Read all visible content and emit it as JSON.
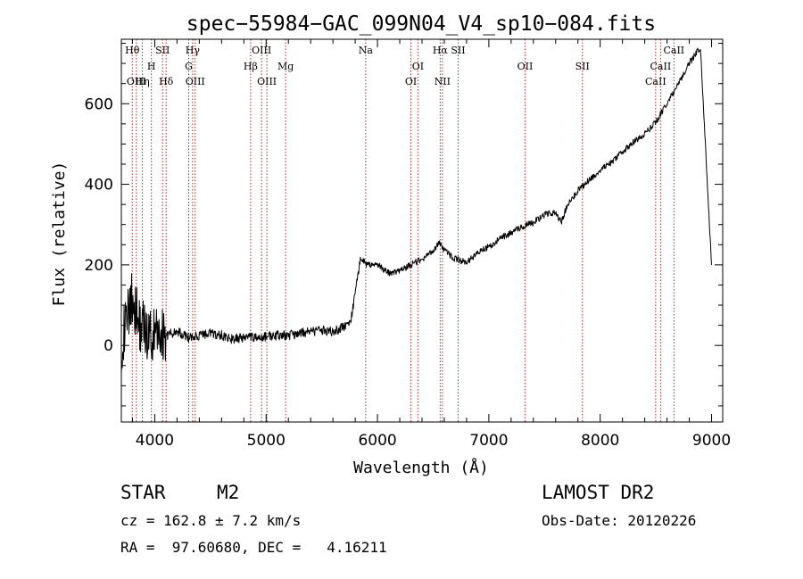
{
  "chart_data": {
    "type": "line",
    "title": "spec−55984−GAC_099N04_V4_sp10−084.fits",
    "xlabel": "Wavelength (Å)",
    "ylabel": "Flux (relative)",
    "xlim": [
      3700,
      9100
    ],
    "ylim": [
      -190,
      760
    ],
    "grid": false,
    "x_ticks": [
      4000,
      5000,
      6000,
      7000,
      8000,
      9000
    ],
    "x_tick_labels": [
      "4000",
      "5000",
      "6000",
      "7000",
      "8000",
      "9000"
    ],
    "y_ticks": [
      0,
      200,
      400,
      600
    ],
    "y_tick_labels": [
      "0",
      "200",
      "400",
      "600"
    ],
    "series": [
      {
        "x": [
          3700,
          3760,
          3800,
          3850,
          3900,
          3950,
          4000,
          4050,
          4100,
          4200,
          4300,
          4400,
          4500,
          4600,
          4700,
          4800,
          4900,
          5000,
          5100,
          5200,
          5300,
          5400,
          5500,
          5600,
          5700,
          5760,
          5800,
          5850,
          5900,
          6000,
          6100,
          6200,
          6300,
          6400,
          6500,
          6560,
          6600,
          6700,
          6800,
          6900,
          7000,
          7100,
          7200,
          7300,
          7400,
          7500,
          7600,
          7650,
          7700,
          7800,
          7900,
          8000,
          8100,
          8200,
          8300,
          8400,
          8500,
          8600,
          8700,
          8800,
          8900,
          9000
        ],
        "y": [
          0,
          80,
          120,
          60,
          40,
          30,
          20,
          30,
          25,
          35,
          20,
          25,
          30,
          25,
          15,
          20,
          18,
          22,
          25,
          25,
          30,
          35,
          38,
          35,
          45,
          60,
          130,
          220,
          200,
          200,
          180,
          185,
          200,
          215,
          235,
          255,
          235,
          215,
          205,
          230,
          245,
          265,
          280,
          295,
          305,
          325,
          330,
          305,
          345,
          385,
          410,
          435,
          455,
          480,
          505,
          525,
          555,
          600,
          650,
          700,
          740,
          200
        ]
      }
    ],
    "lines": [
      {
        "label": "Hθ",
        "x": 3798,
        "row": 1
      },
      {
        "label": "OIII",
        "x": 3835,
        "row": 3
      },
      {
        "label": "Hη",
        "x": 3889,
        "row": 3
      },
      {
        "label": "H",
        "x": 3970,
        "row": 2
      },
      {
        "label": "SII",
        "x": 4070,
        "row": 1
      },
      {
        "label": "Hδ",
        "x": 4102,
        "row": 3
      },
      {
        "label": "Hγ",
        "x": 4340,
        "row": 1
      },
      {
        "label": "G",
        "x": 4305,
        "row": 2
      },
      {
        "label": "OIII",
        "x": 4363,
        "row": 3
      },
      {
        "label": "OIII",
        "x": 4959,
        "row": 1
      },
      {
        "label": "Hβ",
        "x": 4861,
        "row": 2
      },
      {
        "label": "OIII",
        "x": 5007,
        "row": 3
      },
      {
        "label": "Mg",
        "x": 5175,
        "row": 2
      },
      {
        "label": "Na",
        "x": 5894,
        "row": 1
      },
      {
        "label": "OI",
        "x": 6363,
        "row": 2
      },
      {
        "label": "OI",
        "x": 6300,
        "row": 3
      },
      {
        "label": "Hα",
        "x": 6563,
        "row": 1
      },
      {
        "label": "SII",
        "x": 6724,
        "row": 1
      },
      {
        "label": "NII",
        "x": 6583,
        "row": 3
      },
      {
        "label": "OII",
        "x": 7325,
        "row": 2
      },
      {
        "label": "SII",
        "x": 7840,
        "row": 2
      },
      {
        "label": "CaII",
        "x": 8662,
        "row": 1
      },
      {
        "label": "CaII",
        "x": 8542,
        "row": 2
      },
      {
        "label": "CaII",
        "x": 8498,
        "row": 3
      }
    ]
  },
  "info": {
    "class": "STAR",
    "subclass": "M2",
    "survey": "LAMOST DR2",
    "redshift": "cz = 162.8 ± 7.2 km/s",
    "obs_date": "Obs-Date: 20120226",
    "coords": "RA =  97.60680, DEC =   4.16211"
  }
}
